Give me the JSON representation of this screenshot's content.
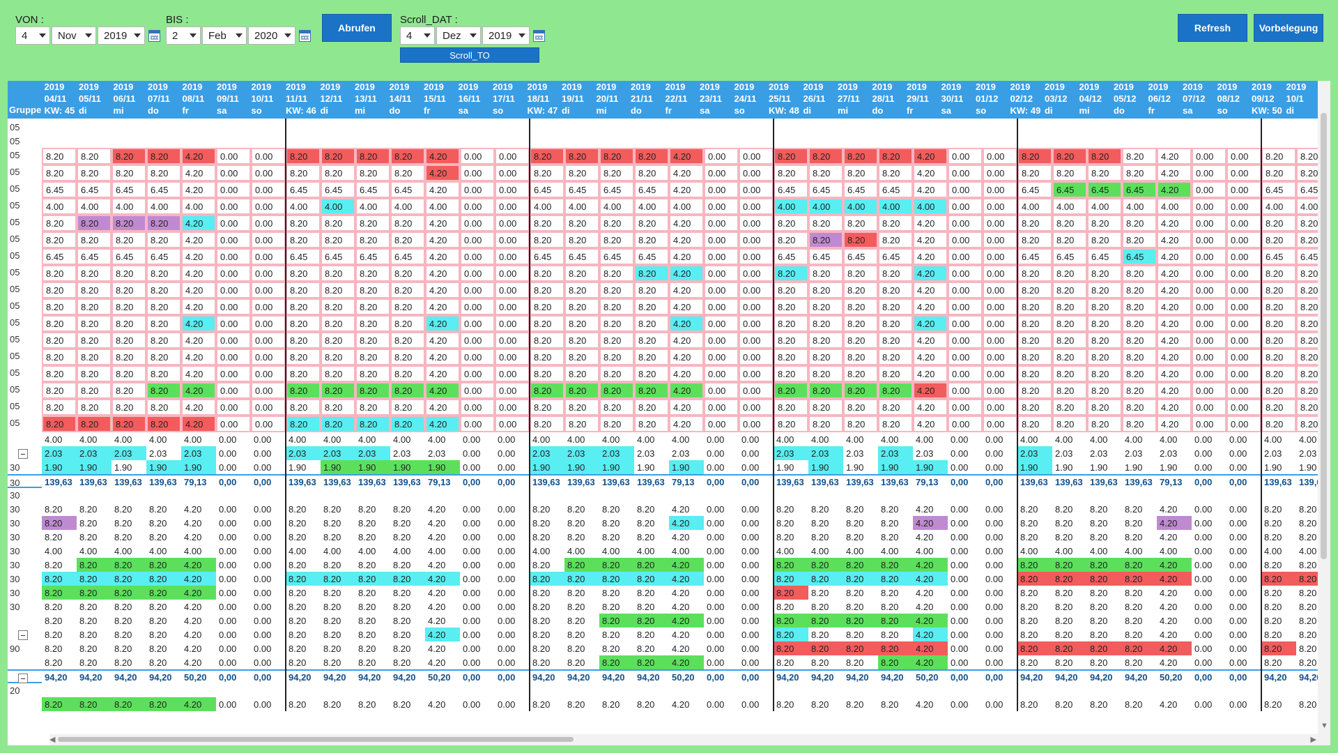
{
  "toolbar": {
    "von_label": "VON :",
    "bis_label": "BIS :",
    "scroll_label": "Scroll_DAT :",
    "von": {
      "day": "4",
      "month": "Nov",
      "year": "2019"
    },
    "bis": {
      "day": "2",
      "month": "Feb",
      "year": "2020"
    },
    "scroll": {
      "day": "4",
      "month": "Dez",
      "year": "2019"
    },
    "abrufen": "Abrufen",
    "scroll_to": "Scroll_TO",
    "refresh": "Refresh",
    "vorbelegung": "Vorbelegung"
  },
  "grid": {
    "group_header": "Gruppe",
    "columns": [
      "2019\n04/11\nKW: 45",
      "2019\n05/11\ndi",
      "2019\n06/11\nmi",
      "2019\n07/11\ndo",
      "2019\n08/11\nfr",
      "2019\n09/11\nsa",
      "2019\n10/11\nso",
      "2019\n11/11\nKW: 46",
      "2019\n12/11\ndi",
      "2019\n13/11\nmi",
      "2019\n14/11\ndo",
      "2019\n15/11\nfr",
      "2019\n16/11\nsa",
      "2019\n17/11\nso",
      "2019\n18/11\nKW: 47",
      "2019\n19/11\ndi",
      "2019\n20/11\nmi",
      "2019\n21/11\ndo",
      "2019\n22/11\nfr",
      "2019\n23/11\nsa",
      "2019\n24/11\nso",
      "2019\n25/11\nKW: 48",
      "2019\n26/11\ndi",
      "2019\n27/11\nmi",
      "2019\n28/11\ndo",
      "2019\n29/11\nfr",
      "2019\n30/11\nsa",
      "2019\n01/12\nso",
      "2019\n02/12\nKW: 49",
      "2019\n03/12\ndi",
      "2019\n04/12\nmi",
      "2019\n05/12\ndo",
      "2019\n06/12\nfr",
      "2019\n07/12\nsa",
      "2019\n08/12\nso",
      "2019\n09/12\nKW: 50",
      "2019\n10/1\ndi"
    ],
    "rows": [
      {
        "g": "05",
        "t": "blank"
      },
      {
        "g": "05",
        "t": "blank"
      },
      {
        "g": "05",
        "t": "pink",
        "v": "820",
        "c": "n,n,r,r,r,n,n,r,r,r,r,r,n,n,r,r,r,r,r,n,n,r,r,r,r,r,n,n,r,r,r,n,n,n,n,n,n"
      },
      {
        "g": "05",
        "t": "pink",
        "v": "820",
        "c": "n,n,n,n,n,n,n,n,n,n,n,r,n,n,n,n,n,n,n,n,n,n,n,n,n,n,n,n,n,n,n,n,n,n,n,n,n"
      },
      {
        "g": "05",
        "t": "pink",
        "v": "645",
        "c": "n,n,n,n,n,n,n,n,n,n,n,n,n,n,n,n,n,n,n,n,n,n,n,n,n,n,n,n,n,g,g,g,g,n,n,n,n"
      },
      {
        "g": "05",
        "t": "pink",
        "v": "400",
        "c": "n,n,n,n,n,n,n,n,c,n,n,n,n,n,n,n,n,n,n,n,n,c,c,c,c,c,n,n,n,n,n,n,n,n,n,n,n"
      },
      {
        "g": "05",
        "t": "pink",
        "v": "820",
        "c": "n,p,p,p,c,n,n,n,n,n,n,n,n,n,n,n,n,n,n,n,n,n,n,n,n,n,n,n,n,n,n,n,n,n,n,n,n"
      },
      {
        "g": "05",
        "t": "pink",
        "v": "820",
        "c": "n,n,n,n,n,n,n,n,n,n,n,n,n,n,n,n,n,n,n,n,n,n,p,r,n,n,n,n,n,n,n,n,n,n,n,n,n"
      },
      {
        "g": "05",
        "t": "pink",
        "v": "645",
        "c": "n,n,n,n,n,n,n,n,n,n,n,n,n,n,n,n,n,n,n,n,n,n,n,n,n,n,n,n,n,n,n,c,n,n,n,n,n"
      },
      {
        "g": "05",
        "t": "pink",
        "v": "820",
        "c": "n,n,n,n,n,n,n,n,n,n,n,n,n,n,n,n,n,c,c,n,n,c,n,n,n,c,n,n,n,n,n,n,n,n,n,n,n"
      },
      {
        "g": "05",
        "t": "pink",
        "v": "820",
        "c": "n"
      },
      {
        "g": "05",
        "t": "pink",
        "v": "820",
        "c": "n"
      },
      {
        "g": "05",
        "t": "pink",
        "v": "820",
        "c": "n,n,n,n,c,n,n,n,n,n,n,c,n,n,n,n,n,n,c,n,n,n,n,n,n,c,n,n,n,n,n,n,n,n,n,n,n"
      },
      {
        "g": "05",
        "t": "pink",
        "v": "820",
        "c": "n"
      },
      {
        "g": "05",
        "t": "pink",
        "v": "820",
        "c": "n"
      },
      {
        "g": "05",
        "t": "pink",
        "v": "820",
        "c": "n"
      },
      {
        "g": "05",
        "t": "pink",
        "v": "820",
        "c": "n,n,n,g,g,n,n,g,g,g,g,g,n,n,g,g,g,g,g,n,n,g,g,g,g,r,n,n,n,n,n,n,n,n,n,n,n"
      },
      {
        "g": "05",
        "t": "pink",
        "v": "820",
        "c": "n"
      },
      {
        "g": "05",
        "t": "pink",
        "v": "820",
        "c": "r,r,r,r,r,n,n,c,c,c,c,c,n,n,n,n,n,n,n,n,n,n,n,n,n,n,n,n,n,n,n,n,n,n,n,n,n"
      },
      {
        "g": "",
        "t": "plain",
        "v": "400",
        "c": "n"
      },
      {
        "g": "-",
        "t": "plain",
        "v": "203",
        "c": "c,c,c,n,c,n,n,c,c,c,n,n,n,n,c,c,c,n,n,n,n,c,c,n,c,n,n,n,c,n,n,n,n,n,n,n,n"
      },
      {
        "g": "30",
        "t": "plain",
        "v": "190",
        "c": "c,c,n,c,c,n,n,n,g,g,g,g,n,n,c,c,c,n,c,n,n,n,c,n,c,c,n,n,c,n,n,n,n,n,n,n,n"
      },
      {
        "g": "30",
        "t": "sum",
        "v": "sumA"
      },
      {
        "g": "30",
        "t": "empty"
      },
      {
        "g": "30",
        "t": "plain",
        "v": "820",
        "c": "n"
      },
      {
        "g": "30",
        "t": "plain",
        "v": "820",
        "c": "p,n,n,n,n,n,n,n,n,n,n,n,n,n,n,n,n,n,c,n,n,n,n,n,n,p,n,n,n,n,n,n,p,n,n,n,n"
      },
      {
        "g": "30",
        "t": "plain",
        "v": "820",
        "c": "n"
      },
      {
        "g": "30",
        "t": "plain",
        "v": "400",
        "c": "n"
      },
      {
        "g": "30",
        "t": "plain",
        "v": "820",
        "c": "n,g,g,g,g,n,n,n,n,n,n,n,n,n,n,g,g,g,g,n,n,g,g,g,g,g,n,n,g,g,g,g,g,n,n,n,n"
      },
      {
        "g": "30",
        "t": "plain",
        "v": "820",
        "c": "c,c,c,c,c,n,n,c,c,c,c,c,n,n,c,c,c,c,c,n,n,c,c,c,c,c,n,n,r,r,r,r,r,n,n,r,r"
      },
      {
        "g": "30",
        "t": "plain",
        "v": "820",
        "c": "g,g,g,g,g,n,n,n,n,n,n,n,n,n,n,n,n,n,n,n,n,r,n,n,n,n,n,n,n,n,n,n,n,n,n,n,n"
      },
      {
        "g": "30",
        "t": "plain",
        "v": "820",
        "c": "n"
      },
      {
        "g": "",
        "t": "plain",
        "v": "820",
        "c": "n,n,n,n,n,n,n,n,n,n,n,n,n,n,n,n,g,g,g,n,n,g,g,g,g,g,n,n,n,n,n,n,n,n,n,n,n"
      },
      {
        "g": "-",
        "t": "plain",
        "v": "820",
        "c": "n,n,n,n,n,n,n,n,n,n,n,c,n,n,n,n,n,n,n,n,n,c,n,n,n,c,n,n,n,n,n,n,n,n,n,n,n"
      },
      {
        "g": "90",
        "t": "plain",
        "v": "820",
        "c": "n,n,n,n,n,n,n,n,n,n,n,n,n,n,n,n,n,n,n,n,n,r,r,r,r,r,n,n,r,r,r,r,r,n,n,r,n"
      },
      {
        "g": "",
        "t": "plain",
        "v": "820",
        "c": "n,n,n,n,n,n,n,n,n,n,n,n,n,n,n,n,g,g,g,n,n,n,n,n,g,g,n,n,n,n,n,n,n,n,n,n,n"
      },
      {
        "g": "-",
        "t": "sum",
        "v": "sumB"
      },
      {
        "g": "20",
        "t": "empty"
      },
      {
        "g": "",
        "t": "plain",
        "v": "820",
        "c": "g,g,g,g,g,n,n,n,n,n,n,n,n,n,n,n,n,n,n,n,n,n,n,n,n,n,n,n,n,n,n,n,n,n,n,n,n"
      }
    ],
    "values": {
      "820": [
        "8.20",
        "8.20",
        "8.20",
        "8.20",
        "4.20",
        "0.00",
        "0.00"
      ],
      "645": [
        "6.45",
        "6.45",
        "6.45",
        "6.45",
        "4.20",
        "0.00",
        "0.00"
      ],
      "400": [
        "4.00",
        "4.00",
        "4.00",
        "4.00",
        "4.00",
        "0.00",
        "0.00"
      ],
      "203": [
        "2.03",
        "2.03",
        "2.03",
        "2.03",
        "2.03",
        "0.00",
        "0.00"
      ],
      "190": [
        "1.90",
        "1.90",
        "1.90",
        "1.90",
        "1.90",
        "0.00",
        "0.00"
      ],
      "sumA": [
        "139,63",
        "139,63",
        "139,63",
        "139,63",
        "79,13",
        "0,00",
        "0,00"
      ],
      "sumB": [
        "94,20",
        "94,20",
        "94,20",
        "94,20",
        "50,20",
        "0,00",
        "0,00"
      ]
    },
    "colors": {
      "red": "#f25c5c",
      "green": "#5ce05c",
      "cyan": "#58eef2",
      "purple": "#c08ad0",
      "header": "#3a9ee5",
      "background": "#8fe890"
    }
  }
}
